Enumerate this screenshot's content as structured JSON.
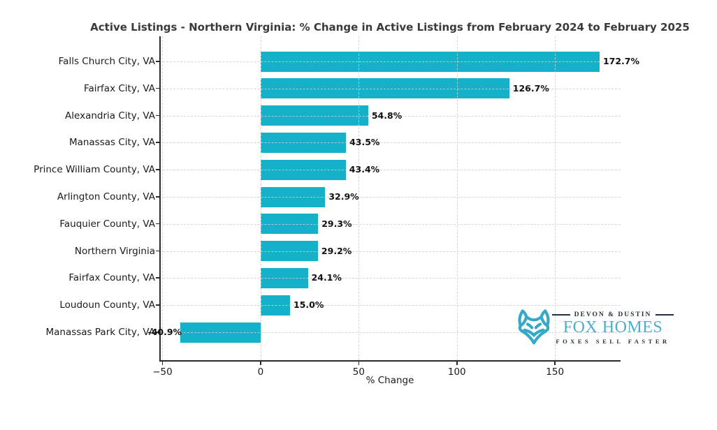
{
  "title": "Active Listings - Northern Virginia: % Change in Active Listings from February 2024 to February 2025",
  "chart_data": {
    "type": "bar",
    "orientation": "horizontal",
    "categories": [
      "Falls Church City, VA",
      "Fairfax City, VA",
      "Alexandria City, VA",
      "Manassas City, VA",
      "Prince William County, VA",
      "Arlington County, VA",
      "Fauquier County, VA",
      "Northern Virginia",
      "Fairfax County, VA",
      "Loudoun County, VA",
      "Manassas Park City, VA"
    ],
    "values": [
      172.7,
      126.7,
      54.8,
      43.5,
      43.4,
      32.9,
      29.3,
      29.2,
      24.1,
      15.0,
      -40.9
    ],
    "value_labels": [
      "172.7%",
      "126.7%",
      "54.8%",
      "43.5%",
      "43.4%",
      "32.9%",
      "29.3%",
      "29.2%",
      "24.1%",
      "15.0%",
      "-40.9%"
    ],
    "xlabel": "% Change",
    "xlim": [
      -51.6,
      183.4
    ],
    "xticks": [
      -50,
      0,
      50,
      100,
      150
    ],
    "xtick_labels": [
      "−50",
      "0",
      "50",
      "100",
      "150"
    ],
    "grid": "dashed",
    "legend": "none",
    "bar_color": "#14b1c9"
  },
  "logo": {
    "top_line": "DEVON & DUSTIN",
    "name": "FOX HOMES",
    "tagline": "FOXES SELL FASTER",
    "teal": "#4bb0cb",
    "icon_teal": "#35a9c6",
    "navy": "#22303e"
  },
  "colors": {
    "bar": "#14b1c9",
    "title_text": "#3a3a3a",
    "axis_text": "#1a1a1a",
    "spine": "#2a2a2a",
    "gridline": "#cecece",
    "background": "#ffffff"
  }
}
